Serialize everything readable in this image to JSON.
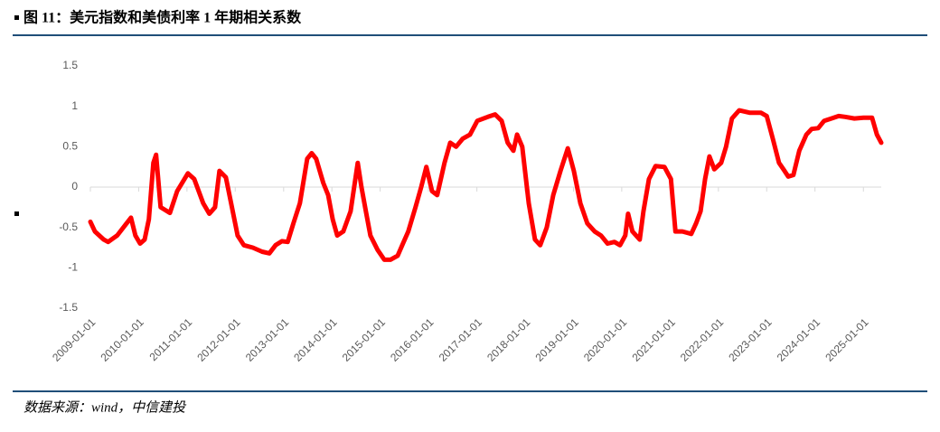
{
  "chart_data": {
    "type": "line",
    "title": "图 11：美元指数和美债利率 1 年期相关系数",
    "source": "数据来源：wind，中信建投",
    "x": [
      "2009-01-01",
      "2009-02-04",
      "2009-04-12",
      "2009-05-15",
      "2009-07-22",
      "2009-10-01",
      "2009-11-04",
      "2009-12-07",
      "2010-01-12",
      "2010-02-15",
      "2010-03-19",
      "2010-04-22",
      "2010-05-13",
      "2010-06-16",
      "2010-08-25",
      "2010-10-19",
      "2011-01-08",
      "2011-02-25",
      "2011-05-04",
      "2011-06-19",
      "2011-08-01",
      "2011-09-04",
      "2011-10-22",
      "2011-12-01",
      "2012-01-19",
      "2012-03-06",
      "2012-05-13",
      "2012-07-22",
      "2012-09-15",
      "2012-11-01",
      "2012-12-19",
      "2013-02-01",
      "2013-03-16",
      "2013-05-04",
      "2013-06-28",
      "2013-08-01",
      "2013-09-04",
      "2013-10-28",
      "2013-12-04",
      "2014-01-07",
      "2014-02-10",
      "2014-03-28",
      "2014-05-22",
      "2014-07-15",
      "2014-08-12",
      "2014-09-15",
      "2014-10-19",
      "2014-12-13",
      "2015-02-01",
      "2015-03-19",
      "2015-05-13",
      "2015-06-22",
      "2015-08-01",
      "2015-09-25",
      "2015-11-07",
      "2015-12-16",
      "2016-01-28",
      "2016-03-07",
      "2016-05-01",
      "2016-06-13",
      "2016-07-28",
      "2016-09-16",
      "2016-11-10",
      "2017-01-04",
      "2017-03-25",
      "2017-05-19",
      "2017-07-07",
      "2017-08-22",
      "2017-10-04",
      "2017-11-01",
      "2017-12-10",
      "2018-01-28",
      "2018-03-16",
      "2018-04-25",
      "2018-06-13",
      "2018-08-01",
      "2018-09-25",
      "2018-11-19",
      "2019-01-04",
      "2019-02-22",
      "2019-04-16",
      "2019-06-10",
      "2019-07-28",
      "2019-09-16",
      "2019-11-07",
      "2019-12-19",
      "2020-01-28",
      "2020-02-18",
      "2020-03-22",
      "2020-05-16",
      "2020-06-13",
      "2020-07-25",
      "2020-09-13",
      "2020-11-19",
      "2021-01-07",
      "2021-02-10",
      "2021-04-04",
      "2021-06-10",
      "2021-07-16",
      "2021-08-19",
      "2021-09-22",
      "2021-10-25",
      "2021-12-01",
      "2022-01-22",
      "2022-02-28",
      "2022-04-13",
      "2022-06-07",
      "2022-08-28",
      "2022-11-19",
      "2023-01-01",
      "2023-02-16",
      "2023-04-04",
      "2023-05-16",
      "2023-06-13",
      "2023-07-22",
      "2023-09-04",
      "2023-10-28",
      "2023-12-07",
      "2024-01-25",
      "2024-03-10",
      "2024-05-04",
      "2024-06-28",
      "2024-08-16",
      "2024-10-25",
      "2025-01-01",
      "2025-03-07",
      "2025-04-13",
      "2025-05-16"
    ],
    "series": [
      {
        "color": "#ff0000",
        "values": [
          -0.43,
          -0.55,
          -0.65,
          -0.68,
          -0.6,
          -0.45,
          -0.38,
          -0.6,
          -0.7,
          -0.65,
          -0.4,
          0.3,
          0.4,
          -0.25,
          -0.32,
          -0.05,
          0.17,
          0.1,
          -0.2,
          -0.33,
          -0.25,
          0.2,
          0.12,
          -0.2,
          -0.6,
          -0.72,
          -0.75,
          -0.8,
          -0.82,
          -0.72,
          -0.67,
          -0.68,
          -0.45,
          -0.2,
          0.35,
          0.42,
          0.35,
          0.05,
          -0.1,
          -0.4,
          -0.6,
          -0.55,
          -0.3,
          0.3,
          0.0,
          -0.3,
          -0.6,
          -0.78,
          -0.9,
          -0.9,
          -0.85,
          -0.7,
          -0.55,
          -0.25,
          0.0,
          0.25,
          -0.05,
          -0.1,
          0.3,
          0.55,
          0.5,
          0.6,
          0.65,
          0.82,
          0.87,
          0.9,
          0.82,
          0.55,
          0.45,
          0.65,
          0.5,
          -0.2,
          -0.65,
          -0.72,
          -0.5,
          -0.1,
          0.2,
          0.48,
          0.2,
          -0.2,
          -0.45,
          -0.55,
          -0.6,
          -0.7,
          -0.68,
          -0.72,
          -0.6,
          -0.33,
          -0.55,
          -0.65,
          -0.3,
          0.1,
          0.26,
          0.25,
          0.1,
          -0.55,
          -0.55,
          -0.58,
          -0.45,
          -0.3,
          0.1,
          0.38,
          0.22,
          0.3,
          0.5,
          0.85,
          0.95,
          0.92,
          0.92,
          0.88,
          0.6,
          0.3,
          0.2,
          0.13,
          0.15,
          0.45,
          0.65,
          0.72,
          0.73,
          0.82,
          0.85,
          0.88,
          0.87,
          0.85,
          0.86,
          0.86,
          0.65,
          0.55
        ]
      }
    ],
    "xlim": [
      "2009-01-01",
      "2025-05-16"
    ],
    "xticks": [
      "2009-01-01",
      "2010-01-01",
      "2011-01-01",
      "2012-01-01",
      "2013-01-01",
      "2014-01-01",
      "2015-01-01",
      "2016-01-01",
      "2017-01-01",
      "2018-01-01",
      "2019-01-01",
      "2020-01-01",
      "2021-01-01",
      "2022-01-01",
      "2023-01-01",
      "2024-01-01",
      "2025-01-01"
    ],
    "ylim": [
      -1.5,
      1.5
    ],
    "yticks": [
      -1.5,
      -1,
      -0.5,
      0,
      0.5,
      1,
      1.5
    ],
    "grid": false
  }
}
